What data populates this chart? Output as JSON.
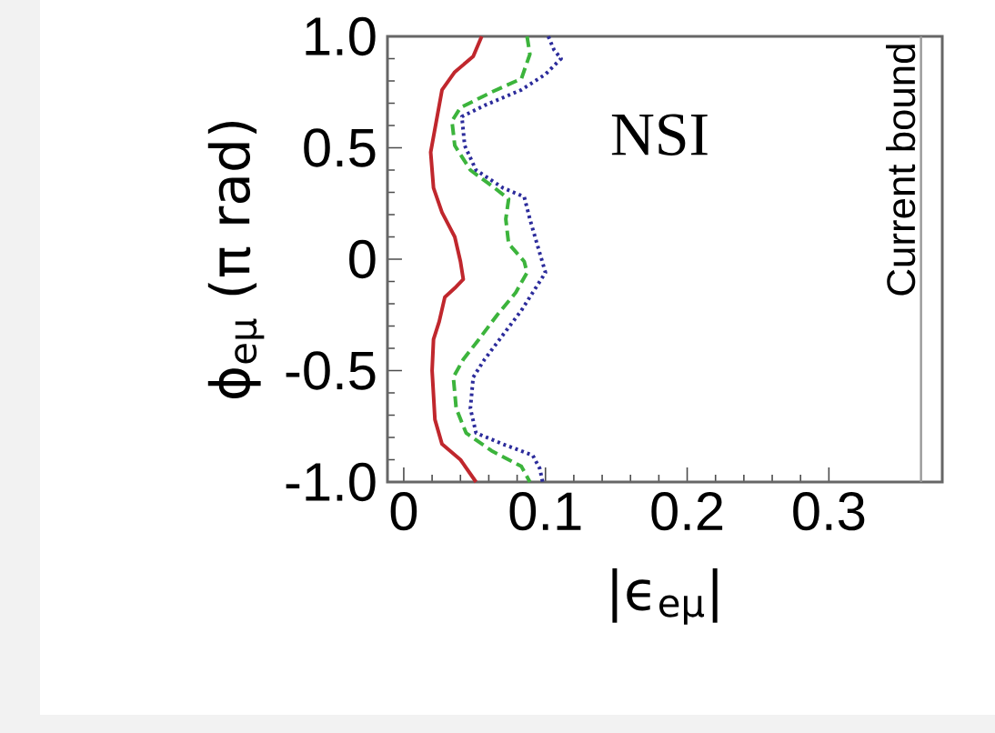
{
  "chart_data": {
    "type": "line",
    "xlabel": "|ϵ$_{eμ}$|",
    "ylabel": "ϕ$_{eμ}$ (π rad)",
    "annotations": [
      "NSI"
    ],
    "xlim": [
      -0.0115,
      0.38
    ],
    "ylim": [
      -1.0,
      1.0
    ],
    "xticks": [
      0,
      0.1,
      0.2,
      0.3
    ],
    "yticks": [
      {
        "value": -1.0,
        "label": "-1.0"
      },
      {
        "value": -0.5,
        "label": "-0.5"
      },
      {
        "value": 0,
        "label": "0"
      },
      {
        "value": 0.5,
        "label": "0.5"
      },
      {
        "value": 1.0,
        "label": "1.0"
      }
    ],
    "marker": "none",
    "ref_lines": [
      {
        "axis": "x",
        "value": 0.365,
        "label": "Current bound",
        "color": "#999999"
      }
    ],
    "series": [
      {
        "color": "#c0272d",
        "line_style": "solid",
        "x": [
          0.055,
          0.049,
          0.036,
          0.027,
          0.023,
          0.019,
          0.021,
          0.027,
          0.036,
          0.04,
          0.042,
          0.036,
          0.029,
          0.025,
          0.021,
          0.02,
          0.022,
          0.027,
          0.04,
          0.051
        ],
        "values": [
          1.0,
          0.91,
          0.84,
          0.76,
          0.62,
          0.48,
          0.32,
          0.21,
          0.1,
          -0.01,
          -0.09,
          -0.13,
          -0.17,
          -0.28,
          -0.36,
          -0.5,
          -0.72,
          -0.83,
          -0.9,
          -1.0
        ]
      },
      {
        "color": "#3cb43c",
        "line_style": "dashed",
        "x": [
          0.087,
          0.089,
          0.083,
          0.062,
          0.04,
          0.034,
          0.036,
          0.047,
          0.064,
          0.074,
          0.072,
          0.074,
          0.085,
          0.087,
          0.079,
          0.066,
          0.053,
          0.042,
          0.035,
          0.037,
          0.044,
          0.062,
          0.083,
          0.089
        ],
        "values": [
          1.0,
          0.92,
          0.81,
          0.75,
          0.68,
          0.62,
          0.51,
          0.4,
          0.32,
          0.27,
          0.18,
          0.07,
          -0.01,
          -0.06,
          -0.15,
          -0.25,
          -0.36,
          -0.45,
          -0.53,
          -0.67,
          -0.78,
          -0.86,
          -0.93,
          -1.0
        ]
      },
      {
        "color": "#2b2b9b",
        "line_style": "dotted",
        "x": [
          0.102,
          0.106,
          0.111,
          0.1,
          0.083,
          0.057,
          0.041,
          0.043,
          0.051,
          0.07,
          0.085,
          0.089,
          0.094,
          0.1,
          0.091,
          0.083,
          0.07,
          0.057,
          0.049,
          0.047,
          0.051,
          0.07,
          0.091,
          0.096,
          0.098
        ],
        "values": [
          1.0,
          0.94,
          0.9,
          0.83,
          0.76,
          0.69,
          0.64,
          0.51,
          0.4,
          0.32,
          0.28,
          0.18,
          0.07,
          -0.06,
          -0.15,
          -0.23,
          -0.34,
          -0.45,
          -0.53,
          -0.67,
          -0.78,
          -0.83,
          -0.88,
          -0.94,
          -1.0
        ]
      }
    ]
  }
}
